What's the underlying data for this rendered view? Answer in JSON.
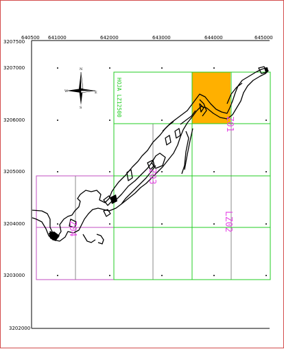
{
  "map": {
    "x_ticks": [
      "640500",
      "641000",
      "642000",
      "643000",
      "644000",
      "645000"
    ],
    "y_ticks": [
      "3207500",
      "3207000",
      "3206000",
      "3205000",
      "3204000",
      "3203000",
      "3202000"
    ],
    "compass": {
      "north": "N",
      "south": "S",
      "east": "E",
      "west": "W"
    },
    "green_sheet_label": "HOJA LZ12500",
    "sheet_labels": [
      "Z01",
      "Z03",
      "LZ02",
      "Z04"
    ],
    "colors": {
      "frame": "#d24b4b",
      "green_grid": "#22cc22",
      "magenta_grid": "#c04cc0",
      "grey_grid": "#888888",
      "highlight": "#ffb000",
      "coast": "#000000"
    }
  }
}
